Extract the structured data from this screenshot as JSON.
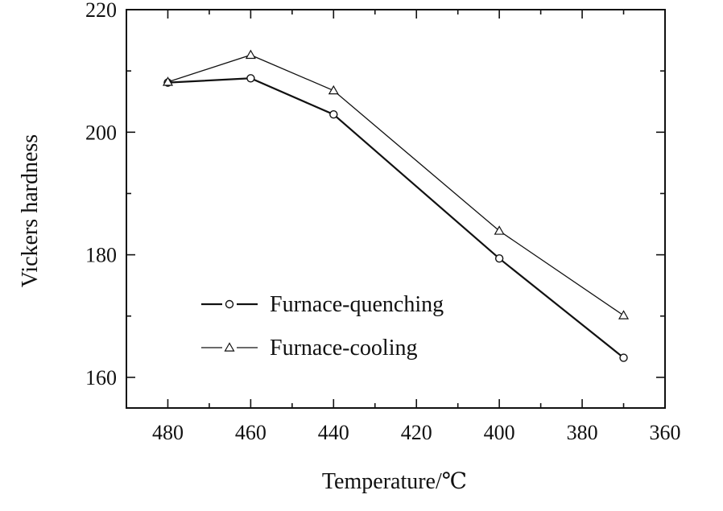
{
  "chart_data": {
    "type": "line",
    "title": "",
    "xlabel": "Temperature/℃",
    "ylabel": "Vickers hardness",
    "xlim": [
      490,
      360
    ],
    "ylim": [
      155,
      220
    ],
    "x_reversed": true,
    "xticks": [
      480,
      460,
      440,
      420,
      400,
      380,
      360
    ],
    "yticks": [
      160,
      180,
      200,
      220
    ],
    "grid": false,
    "legend_position": "lower-left",
    "series": [
      {
        "name": "Furnace-quenching",
        "marker": "circle",
        "color": "#111111",
        "x": [
          480,
          460,
          440,
          400,
          370
        ],
        "y": [
          208.1,
          208.8,
          202.9,
          179.4,
          163.2
        ]
      },
      {
        "name": "Furnace-cooling",
        "marker": "triangle",
        "color": "#111111",
        "x": [
          480,
          460,
          440,
          400,
          370
        ],
        "y": [
          208.2,
          212.6,
          206.8,
          183.9,
          170.1
        ]
      }
    ]
  }
}
